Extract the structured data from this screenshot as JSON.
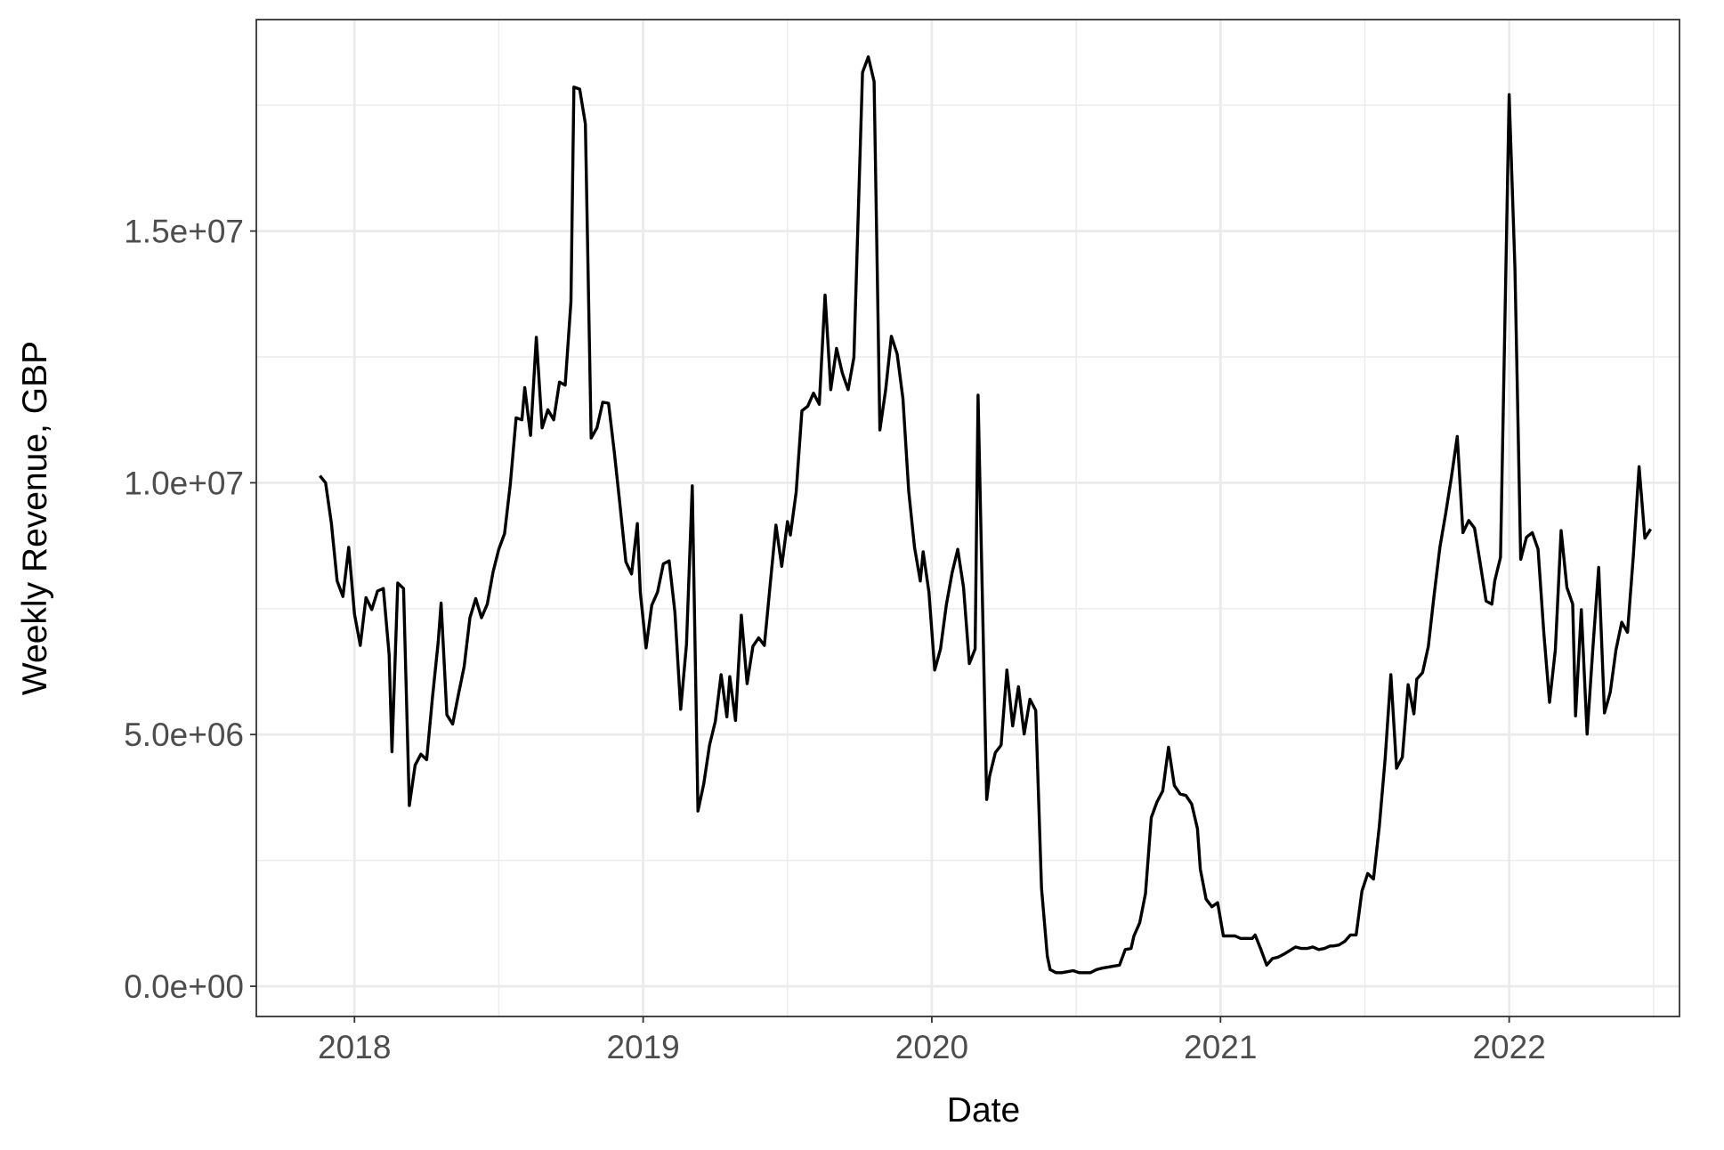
{
  "chart_data": {
    "type": "line",
    "title": "",
    "xlabel": "Date",
    "ylabel": "Weekly Revenue, GBP",
    "x_tick_labels": [
      "2018",
      "2019",
      "2020",
      "2021",
      "2022"
    ],
    "x_ticks": [
      2018,
      2019,
      2020,
      2021,
      2022
    ],
    "y_tick_labels": [
      "0.0e+00",
      "5.0e+06",
      "1.0e+07",
      "1.5e+07"
    ],
    "y_ticks": [
      0,
      5000000,
      10000000,
      15000000
    ],
    "xlim": [
      2017.66,
      2022.59
    ],
    "ylim": [
      -600000,
      19200000
    ],
    "grid": true,
    "theme": "black-and-white panel with light grey major and minor gridlines",
    "line_color": "#000000",
    "grid_color": "#ebebeb",
    "x_unit": "decimal year",
    "series": [
      {
        "x": [
          2017.88,
          2017.9,
          2017.92,
          2017.94,
          2017.96,
          2017.98,
          2018.0,
          2018.02,
          2018.04,
          2018.06,
          2018.08,
          2018.1,
          2018.12,
          2018.13,
          2018.15,
          2018.17,
          2018.19,
          2018.21,
          2018.23,
          2018.25,
          2018.27,
          2018.29,
          2018.3,
          2018.32,
          2018.34,
          2018.36,
          2018.38,
          2018.4,
          2018.42,
          2018.44,
          2018.46,
          2018.48,
          2018.5,
          2018.52,
          2018.54,
          2018.56,
          2018.58,
          2018.59,
          2018.61,
          2018.63,
          2018.65,
          2018.67,
          2018.69,
          2018.71,
          2018.73,
          2018.75,
          2018.76,
          2018.78,
          2018.8,
          2018.82,
          2018.84,
          2018.86,
          2018.88,
          2018.9,
          2018.92,
          2018.94,
          2018.96,
          2018.98,
          2018.99,
          2019.01,
          2019.03,
          2019.05,
          2019.07,
          2019.09,
          2019.11,
          2019.13,
          2019.15,
          2019.17,
          2019.19,
          2019.21,
          2019.23,
          2019.25,
          2019.27,
          2019.29,
          2019.3,
          2019.32,
          2019.34,
          2019.36,
          2019.38,
          2019.4,
          2019.42,
          2019.44,
          2019.46,
          2019.48,
          2019.5,
          2019.51,
          2019.53,
          2019.55,
          2019.57,
          2019.59,
          2019.61,
          2019.63,
          2019.65,
          2019.67,
          2019.69,
          2019.71,
          2019.73,
          2019.74,
          2019.76,
          2019.78,
          2019.8,
          2019.82,
          2019.84,
          2019.86,
          2019.88,
          2019.9,
          2019.92,
          2019.94,
          2019.96,
          2019.97,
          2019.99,
          2020.01,
          2020.03,
          2020.05,
          2020.07,
          2020.09,
          2020.11,
          2020.13,
          2020.15,
          2020.16,
          2020.19,
          2020.2,
          2020.22,
          2020.24,
          2020.26,
          2020.28,
          2020.3,
          2020.32,
          2020.34,
          2020.36,
          2020.38,
          2020.4,
          2020.41,
          2020.43,
          2020.45,
          2020.47,
          2020.49,
          2020.51,
          2020.53,
          2020.55,
          2020.57,
          2020.59,
          2020.61,
          2020.63,
          2020.65,
          2020.67,
          2020.69,
          2020.7,
          2020.72,
          2020.74,
          2020.76,
          2020.78,
          2020.8,
          2020.82,
          2020.84,
          2020.86,
          2020.88,
          2020.9,
          2020.92,
          2020.93,
          2020.95,
          2020.97,
          2020.99,
          2021.01,
          2021.03,
          2021.05,
          2021.07,
          2021.09,
          2021.11,
          2021.12,
          2021.14,
          2021.16,
          2021.18,
          2021.2,
          2021.22,
          2021.24,
          2021.26,
          2021.28,
          2021.3,
          2021.32,
          2021.34,
          2021.36,
          2021.38,
          2021.39,
          2021.41,
          2021.43,
          2021.45,
          2021.47,
          2021.49,
          2021.51,
          2021.53,
          2021.55,
          2021.57,
          2021.59,
          2021.61,
          2021.63,
          2021.65,
          2021.67,
          2021.68,
          2021.7,
          2021.72,
          2021.74,
          2021.76,
          2021.78,
          2021.8,
          2021.82,
          2021.84,
          2021.86,
          2021.88,
          2021.9,
          2021.92,
          2021.94,
          2021.95,
          2021.97,
          2022.0,
          2022.02,
          2022.04,
          2022.06,
          2022.08,
          2022.1,
          2022.12,
          2022.14,
          2022.16,
          2022.18,
          2022.2,
          2022.22,
          2022.23,
          2022.25,
          2022.27,
          2022.29,
          2022.31,
          2022.33,
          2022.35,
          2022.37,
          2022.39,
          2022.41,
          2022.43,
          2022.45,
          2022.47,
          2022.49
        ],
        "y": [
          10140000,
          10000000,
          9200000,
          8050000,
          7740000,
          8720000,
          7390000,
          6770000,
          7720000,
          7480000,
          7850000,
          7900000,
          6590000,
          4660000,
          8010000,
          7900000,
          3590000,
          4390000,
          4610000,
          4500000,
          5720000,
          6830000,
          7610000,
          5390000,
          5210000,
          5790000,
          6350000,
          7320000,
          7700000,
          7320000,
          7590000,
          8230000,
          8680000,
          8990000,
          9980000,
          11290000,
          11250000,
          11890000,
          10940000,
          12890000,
          11090000,
          11450000,
          11250000,
          12000000,
          11940000,
          13600000,
          17860000,
          17820000,
          17130000,
          10890000,
          11090000,
          11600000,
          11580000,
          10610000,
          9540000,
          8430000,
          8190000,
          9190000,
          7830000,
          6720000,
          7570000,
          7830000,
          8390000,
          8450000,
          7430000,
          5500000,
          6790000,
          9940000,
          3480000,
          4020000,
          4790000,
          5260000,
          6190000,
          5350000,
          6150000,
          5280000,
          7370000,
          6010000,
          6750000,
          6920000,
          6770000,
          7970000,
          9160000,
          8340000,
          9230000,
          8960000,
          9810000,
          11430000,
          11520000,
          11780000,
          11560000,
          13730000,
          11850000,
          12670000,
          12180000,
          11850000,
          12490000,
          14360000,
          18150000,
          18460000,
          17970000,
          11050000,
          11850000,
          12910000,
          12560000,
          11670000,
          9830000,
          8720000,
          8050000,
          8630000,
          7830000,
          6280000,
          6700000,
          7570000,
          8210000,
          8680000,
          7920000,
          6410000,
          6700000,
          11740000,
          3710000,
          4170000,
          4640000,
          4790000,
          6280000,
          5170000,
          5950000,
          5010000,
          5700000,
          5480000,
          1950000,
          600000,
          330000,
          270000,
          270000,
          290000,
          310000,
          270000,
          270000,
          270000,
          330000,
          360000,
          380000,
          400000,
          420000,
          730000,
          750000,
          1000000,
          1260000,
          1840000,
          3350000,
          3660000,
          3880000,
          4750000,
          3990000,
          3820000,
          3790000,
          3620000,
          3130000,
          2330000,
          1730000,
          1580000,
          1660000,
          1000000,
          1000000,
          1000000,
          950000,
          950000,
          950000,
          1020000,
          730000,
          420000,
          550000,
          580000,
          640000,
          710000,
          780000,
          750000,
          750000,
          780000,
          730000,
          750000,
          800000,
          800000,
          820000,
          890000,
          1020000,
          1020000,
          1890000,
          2240000,
          2130000,
          3170000,
          4500000,
          6190000,
          4330000,
          4550000,
          5990000,
          5410000,
          6100000,
          6230000,
          6750000,
          7770000,
          8720000,
          9390000,
          10120000,
          10920000,
          9010000,
          9250000,
          9100000,
          8390000,
          7650000,
          7590000,
          8050000,
          8520000,
          17710000,
          14270000,
          8480000,
          8920000,
          9010000,
          8680000,
          7010000,
          5640000,
          6680000,
          9050000,
          7920000,
          7590000,
          5370000,
          7480000,
          5010000,
          6720000,
          8320000,
          5430000,
          5840000,
          6680000,
          7230000,
          7030000,
          8540000,
          10320000,
          8900000,
          9080000
        ]
      }
    ]
  }
}
